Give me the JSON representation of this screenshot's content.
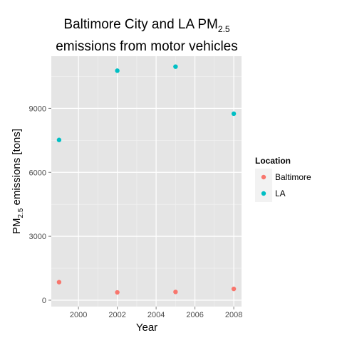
{
  "chart_data": {
    "type": "scatter",
    "title": {
      "line1_prefix": "Baltimore City and LA PM",
      "line1_sub": "2.5",
      "line2": "emissions from motor vehicles"
    },
    "xlabel": "Year",
    "ylabel": {
      "prefix": "PM",
      "sub": "2.5",
      "suffix": " emissions [tons]"
    },
    "x_ticks": [
      "2000",
      "2002",
      "2004",
      "2006",
      "2008"
    ],
    "y_ticks": [
      "0",
      "3000",
      "6000",
      "9000"
    ],
    "xlim": [
      1998.6,
      2008.4
    ],
    "ylim": [
      -300,
      11450
    ],
    "grid": true,
    "legend": {
      "title": "Location",
      "placement": "right",
      "entries": [
        "Baltimore",
        "LA"
      ]
    },
    "series": [
      {
        "name": "Baltimore",
        "color": "#F8766D",
        "points": [
          {
            "x": 1999,
            "y": 847
          },
          {
            "x": 2002,
            "y": 367
          },
          {
            "x": 2005,
            "y": 387
          },
          {
            "x": 2008,
            "y": 530
          }
        ]
      },
      {
        "name": "LA",
        "color": "#00BFC4",
        "points": [
          {
            "x": 1999,
            "y": 7520
          },
          {
            "x": 2002,
            "y": 10770
          },
          {
            "x": 2005,
            "y": 10960
          },
          {
            "x": 2008,
            "y": 8750
          }
        ]
      }
    ]
  }
}
